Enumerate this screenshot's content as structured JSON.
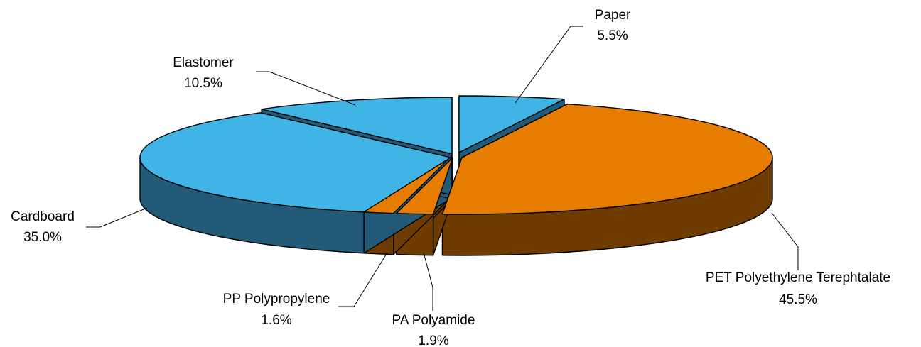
{
  "chart_data": {
    "type": "pie",
    "style": "3d-exploded",
    "categories": [
      "Paper",
      "PET Polyethylene Terephtalate",
      "PA Polyamide",
      "PP Polypropylene",
      "Cardboard",
      "Elastomer"
    ],
    "values": [
      5.5,
      45.5,
      1.9,
      1.6,
      35.0,
      10.5
    ],
    "value_labels": [
      "5.5%",
      "45.5%",
      "1.9%",
      "1.6%",
      "35.0%",
      "10.5%"
    ],
    "colors": {
      "blue_top": "#41B4E6",
      "blue_side": "#225A78",
      "orange_top": "#E67D00",
      "orange_side": "#6E3C00"
    },
    "slice_colors": [
      "blue",
      "orange",
      "orange",
      "orange",
      "blue",
      "blue"
    ],
    "title": "",
    "legend": "none",
    "labels_position": "outside-with-leader-lines"
  }
}
